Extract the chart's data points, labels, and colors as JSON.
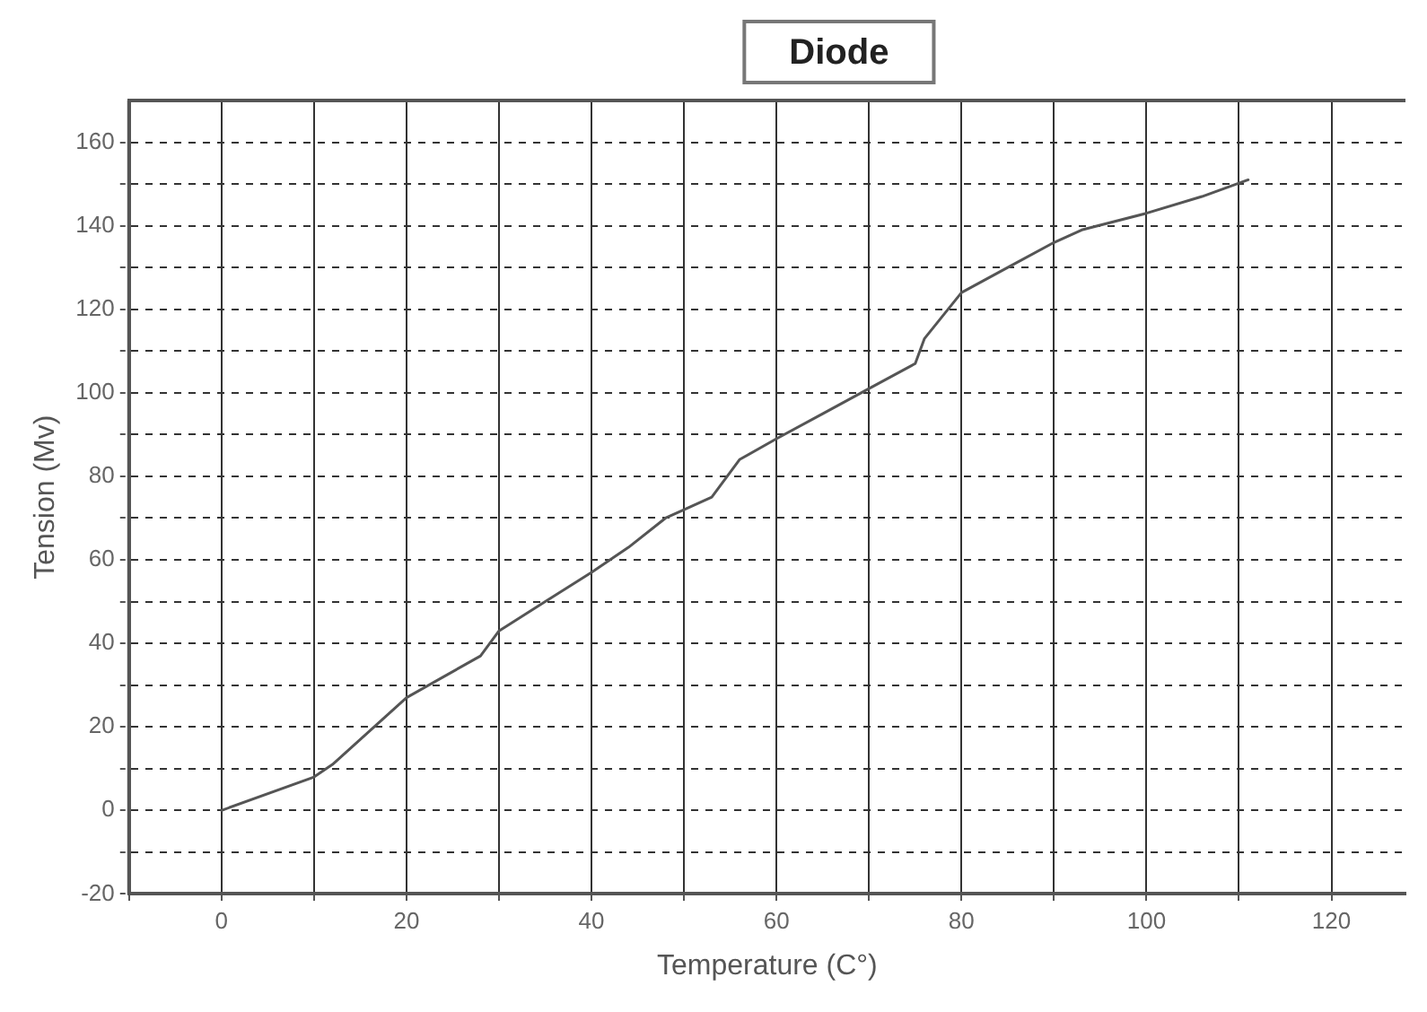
{
  "chart_data": {
    "type": "line",
    "title": "Diode",
    "xlabel": "Temperature (C°)",
    "ylabel": "Tension (Mv)",
    "x": [
      0,
      10,
      12,
      16,
      20,
      24,
      28,
      30,
      35,
      40,
      44,
      48,
      50,
      53,
      56,
      60,
      65,
      70,
      75,
      76,
      80,
      85,
      90,
      93,
      100,
      106,
      111
    ],
    "series": [
      {
        "color": "#555555",
        "values": [
          0,
          8,
          11,
          19,
          27,
          32,
          37,
          43,
          50,
          57,
          63,
          70,
          72,
          75,
          84,
          89,
          95,
          101,
          107,
          113,
          124,
          130,
          136,
          139,
          143,
          147,
          151
        ]
      }
    ],
    "xlim": [
      -10,
      128
    ],
    "ylim": [
      -20,
      170
    ],
    "xticks": [
      {
        "value": -10,
        "label": null
      },
      0,
      {
        "value": 10,
        "label": null
      },
      20,
      {
        "value": 30,
        "label": null
      },
      40,
      {
        "value": 50,
        "label": null
      },
      60,
      {
        "value": 70,
        "label": null
      },
      80,
      {
        "value": 90,
        "label": null
      },
      100,
      {
        "value": 110,
        "label": null
      },
      120
    ],
    "yticks": [
      -20,
      {
        "value": -10,
        "label": null
      },
      0,
      {
        "value": 10,
        "label": null
      },
      20,
      {
        "value": 30,
        "label": null
      },
      40,
      {
        "value": 50,
        "label": null
      },
      60,
      {
        "value": 70,
        "label": null
      },
      80,
      {
        "value": 90,
        "label": null
      },
      100,
      {
        "value": 110,
        "label": null
      },
      120,
      {
        "value": 130,
        "label": null
      },
      140,
      {
        "value": 150,
        "label": null
      },
      160
    ],
    "grid": true,
    "legend": false,
    "marker": "none",
    "line_style": "solid"
  }
}
